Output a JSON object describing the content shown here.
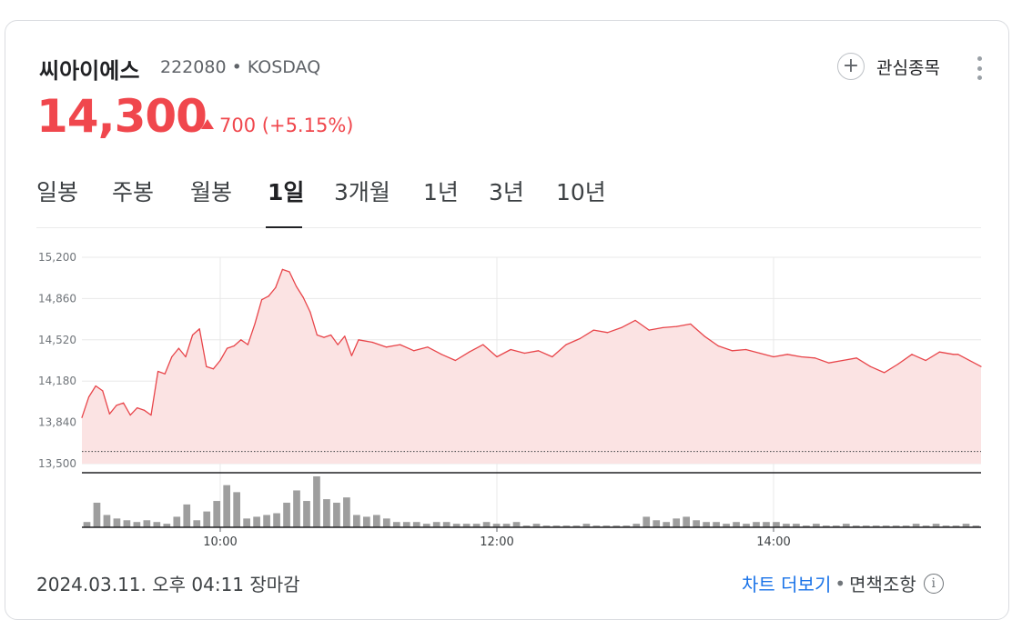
{
  "stock": {
    "name": "씨아이에스",
    "code_line": "222080 • KOSDAQ",
    "watchlist_label": "관심종목",
    "price": "14,300",
    "change": "700",
    "change_pct": "(+5.15%)"
  },
  "tabs": [
    "일봉",
    "주봉",
    "월봉",
    "1일",
    "3개월",
    "1년",
    "3년",
    "10년"
  ],
  "active_tab": "1일",
  "footer": {
    "timestamp": "2024.03.11. 오후 04:11 장마감",
    "more_chart": "차트 더보기",
    "separator": "•",
    "disclaimer": "면책조항"
  },
  "colors": {
    "up": "#f0474d",
    "line": "#e8454a",
    "fill": "#fbe3e3",
    "volume": "#9e9e9e"
  },
  "chart_data": {
    "type": "area",
    "y_ticks": [
      "15,200",
      "14,860",
      "14,520",
      "14,180",
      "13,840",
      "13,500"
    ],
    "ylim": [
      13500,
      15200
    ],
    "x_ticks": [
      "10:00",
      "12:00",
      "14:00"
    ],
    "xlim": [
      "09:00",
      "15:30"
    ],
    "previous_close": 13600,
    "grid": true,
    "series": [
      {
        "x": [
          "09:00",
          "09:03",
          "09:06",
          "09:09",
          "09:12",
          "09:15",
          "09:18",
          "09:21",
          "09:24",
          "09:27",
          "09:30",
          "09:33",
          "09:36",
          "09:39",
          "09:42",
          "09:45",
          "09:48",
          "09:51",
          "09:54",
          "09:57",
          "10:00",
          "10:03",
          "10:06",
          "10:09",
          "10:12",
          "10:15",
          "10:18",
          "10:21",
          "10:24",
          "10:27",
          "10:30",
          "10:33",
          "10:36",
          "10:39",
          "10:42",
          "10:45",
          "10:48",
          "10:51",
          "10:54",
          "10:57",
          "11:00",
          "11:06",
          "11:12",
          "11:18",
          "11:24",
          "11:30",
          "11:36",
          "11:42",
          "11:48",
          "11:54",
          "12:00",
          "12:06",
          "12:12",
          "12:18",
          "12:24",
          "12:30",
          "12:36",
          "12:42",
          "12:48",
          "12:54",
          "13:00",
          "13:06",
          "13:12",
          "13:18",
          "13:24",
          "13:30",
          "13:36",
          "13:42",
          "13:48",
          "13:54",
          "14:00",
          "14:06",
          "14:12",
          "14:18",
          "14:24",
          "14:30",
          "14:36",
          "14:42",
          "14:48",
          "14:54",
          "15:00",
          "15:06",
          "15:12",
          "15:18",
          "15:20",
          "15:30"
        ],
        "y": [
          13880,
          14050,
          14140,
          14100,
          13910,
          13980,
          14000,
          13900,
          13960,
          13940,
          13900,
          14260,
          14240,
          14380,
          14450,
          14380,
          14560,
          14610,
          14300,
          14280,
          14350,
          14450,
          14470,
          14520,
          14480,
          14650,
          14850,
          14880,
          14950,
          15100,
          15080,
          14960,
          14870,
          14750,
          14560,
          14540,
          14560,
          14480,
          14550,
          14390,
          14520,
          14500,
          14460,
          14480,
          14430,
          14460,
          14400,
          14350,
          14420,
          14480,
          14380,
          14440,
          14410,
          14430,
          14380,
          14480,
          14530,
          14600,
          14580,
          14620,
          14680,
          14600,
          14620,
          14630,
          14650,
          14550,
          14470,
          14430,
          14440,
          14410,
          14380,
          14400,
          14380,
          14370,
          14330,
          14350,
          14370,
          14300,
          14250,
          14320,
          14400,
          14350,
          14420,
          14400,
          14400,
          14300
        ]
      }
    ],
    "volume": [
      3,
      14,
      7,
      5,
      4,
      3,
      4,
      3,
      2,
      6,
      13,
      4,
      9,
      15,
      24,
      20,
      5,
      6,
      7,
      8,
      14,
      21,
      15,
      29,
      16,
      14,
      17,
      7,
      6,
      7,
      5,
      3,
      3,
      3,
      2,
      3,
      3,
      2,
      2,
      2,
      3,
      2,
      2,
      3,
      1,
      2,
      1,
      1,
      1,
      1,
      2,
      1,
      1,
      1,
      1,
      2,
      6,
      4,
      3,
      5,
      6,
      4,
      3,
      3,
      2,
      3,
      2,
      3,
      3,
      3,
      2,
      2,
      1,
      2,
      1,
      1,
      2,
      1,
      1,
      1,
      1,
      1,
      1,
      2,
      1,
      2,
      1,
      1,
      2,
      1
    ]
  }
}
